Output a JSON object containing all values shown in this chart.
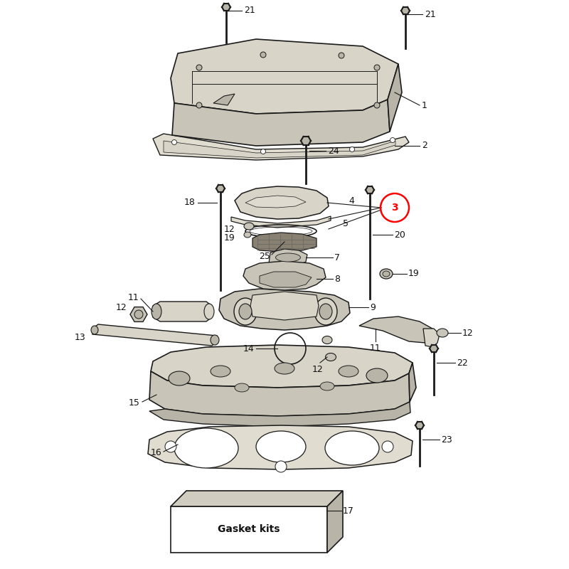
{
  "bg_color": "#ffffff",
  "fig_width": 8.0,
  "fig_height": 8.0,
  "dpi": 100,
  "line_color": "#1a1a1a",
  "label_color": "#111111",
  "label_fontsize": 9,
  "part_fill": "#c8c4b8",
  "part_fill2": "#d8d4c8",
  "part_fill3": "#b8b4a8",
  "gasket_fill": "#e0dcd0",
  "dark_fill": "#888070"
}
